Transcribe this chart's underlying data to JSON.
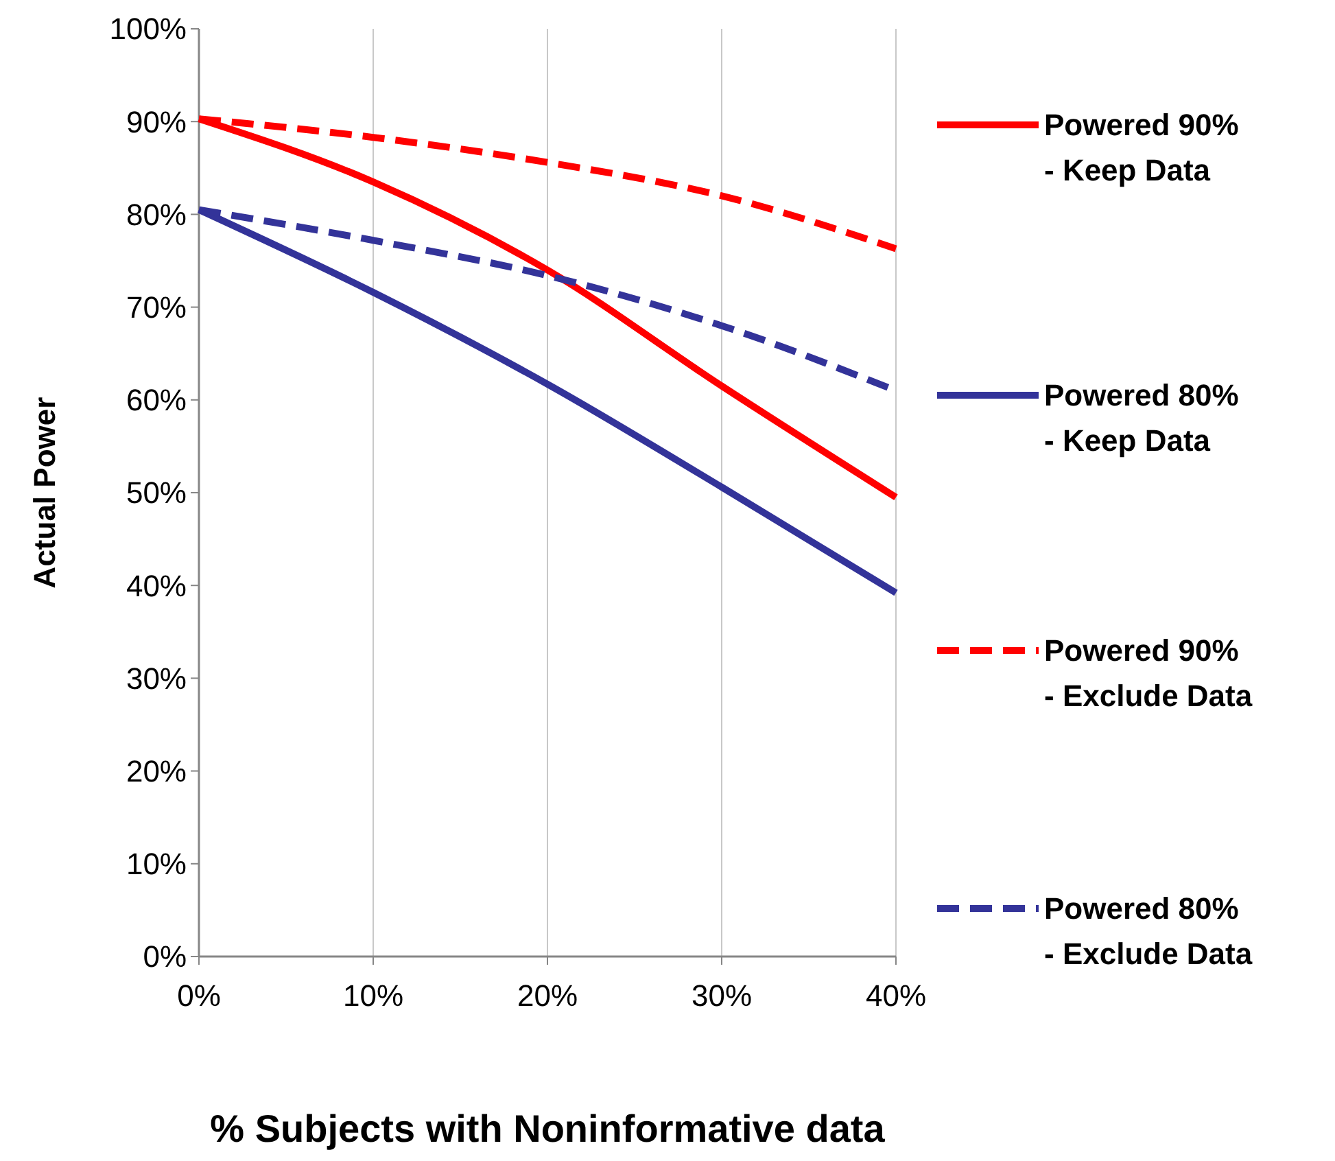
{
  "chart_data": {
    "type": "line",
    "xlabel": "% Subjects with Noninformative data",
    "ylabel": "Actual Power",
    "x": [
      0,
      10,
      20,
      30,
      40
    ],
    "xlim": [
      0,
      40
    ],
    "xticks": [
      {
        "value": 0,
        "label": "0%"
      },
      {
        "value": 10,
        "label": "10%"
      },
      {
        "value": 20,
        "label": "20%"
      },
      {
        "value": 30,
        "label": "30%"
      },
      {
        "value": 40,
        "label": "40%"
      }
    ],
    "ylim": [
      0,
      100
    ],
    "yticks": [
      {
        "value": 0,
        "label": "0%"
      },
      {
        "value": 10,
        "label": "10%"
      },
      {
        "value": 20,
        "label": "20%"
      },
      {
        "value": 30,
        "label": "30%"
      },
      {
        "value": 40,
        "label": "40%"
      },
      {
        "value": 50,
        "label": "50%"
      },
      {
        "value": 60,
        "label": "60%"
      },
      {
        "value": 70,
        "label": "70%"
      },
      {
        "value": 80,
        "label": "80%"
      },
      {
        "value": 90,
        "label": "90%"
      },
      {
        "value": 100,
        "label": "100%"
      }
    ],
    "grid": "x",
    "legend": "right",
    "marker": "none",
    "series": [
      {
        "name": "Powered 90%\n- Keep Data",
        "color": "#ff0000",
        "line_style": "solid",
        "values": [
          90.3,
          83.5,
          74,
          61.5,
          49.5
        ]
      },
      {
        "name": "Powered 80%\n- Keep Data",
        "color": "#333399",
        "line_style": "solid",
        "values": [
          80.5,
          71.6,
          61.7,
          50.6,
          39.2
        ]
      },
      {
        "name": "Powered 90%\n- Exclude Data",
        "color": "#ff0000",
        "line_style": "dashed",
        "values": [
          90.3,
          88.3,
          85.6,
          82,
          76.3
        ]
      },
      {
        "name": "Powered 80%\n- Exclude Data",
        "color": "#333399",
        "line_style": "dashed",
        "values": [
          80.5,
          77.2,
          73.4,
          68,
          61
        ]
      }
    ]
  }
}
